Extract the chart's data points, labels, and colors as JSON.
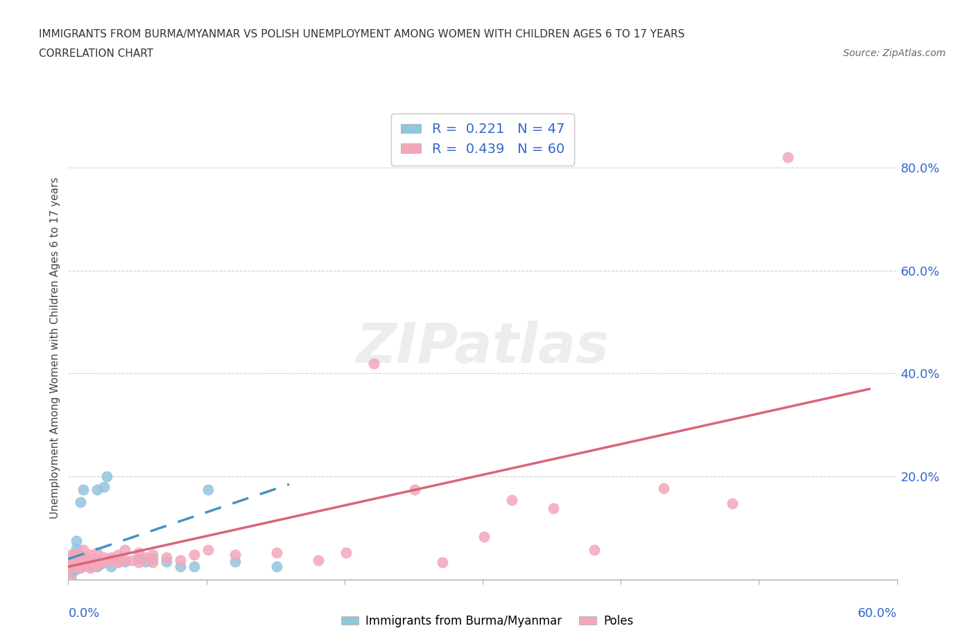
{
  "title_line1": "IMMIGRANTS FROM BURMA/MYANMAR VS POLISH UNEMPLOYMENT AMONG WOMEN WITH CHILDREN AGES 6 TO 17 YEARS",
  "title_line2": "CORRELATION CHART",
  "source_text": "Source: ZipAtlas.com",
  "ylabel": "Unemployment Among Women with Children Ages 6 to 17 years",
  "xlim": [
    0.0,
    0.6
  ],
  "ylim": [
    0.0,
    0.9
  ],
  "yticks": [
    0.0,
    0.2,
    0.4,
    0.6,
    0.8
  ],
  "ytick_labels": [
    "",
    "20.0%",
    "40.0%",
    "60.0%",
    "80.0%"
  ],
  "xticks": [
    0.0,
    0.1,
    0.2,
    0.3,
    0.4,
    0.5,
    0.6
  ],
  "xtick_labels": [
    "",
    "",
    "",
    "",
    "",
    "",
    ""
  ],
  "x_outside_left": "0.0%",
  "x_outside_right": "60.0%",
  "watermark": "ZIPatlas",
  "legend_R1": "R =  0.221   N = 47",
  "legend_R2": "R =  0.439   N = 60",
  "blue_color": "#92c5de",
  "pink_color": "#f4a7b9",
  "blue_line_color": "#4393c3",
  "pink_line_color": "#d9647a",
  "text_color": "#3366cc",
  "grid_color": "#d0d0d0",
  "blue_scatter": [
    [
      0.001,
      0.035
    ],
    [
      0.001,
      0.025
    ],
    [
      0.001,
      0.04
    ],
    [
      0.001,
      0.02
    ],
    [
      0.001,
      0.015
    ],
    [
      0.001,
      0.01
    ],
    [
      0.002,
      0.03
    ],
    [
      0.002,
      0.025
    ],
    [
      0.002,
      0.018
    ],
    [
      0.003,
      0.035
    ],
    [
      0.003,
      0.025
    ],
    [
      0.003,
      0.015
    ],
    [
      0.004,
      0.04
    ],
    [
      0.004,
      0.03
    ],
    [
      0.004,
      0.022
    ],
    [
      0.005,
      0.05
    ],
    [
      0.006,
      0.075
    ],
    [
      0.006,
      0.06
    ],
    [
      0.006,
      0.035
    ],
    [
      0.006,
      0.02
    ],
    [
      0.007,
      0.025
    ],
    [
      0.008,
      0.03
    ],
    [
      0.009,
      0.035
    ],
    [
      0.009,
      0.15
    ],
    [
      0.011,
      0.025
    ],
    [
      0.011,
      0.175
    ],
    [
      0.013,
      0.03
    ],
    [
      0.016,
      0.035
    ],
    [
      0.016,
      0.025
    ],
    [
      0.021,
      0.025
    ],
    [
      0.021,
      0.175
    ],
    [
      0.023,
      0.03
    ],
    [
      0.026,
      0.18
    ],
    [
      0.028,
      0.2
    ],
    [
      0.031,
      0.025
    ],
    [
      0.036,
      0.035
    ],
    [
      0.041,
      0.035
    ],
    [
      0.051,
      0.04
    ],
    [
      0.056,
      0.035
    ],
    [
      0.061,
      0.04
    ],
    [
      0.071,
      0.035
    ],
    [
      0.081,
      0.025
    ],
    [
      0.091,
      0.025
    ],
    [
      0.101,
      0.175
    ],
    [
      0.121,
      0.035
    ],
    [
      0.151,
      0.025
    ],
    [
      0.002,
      0.004
    ]
  ],
  "pink_scatter": [
    [
      0.001,
      0.03
    ],
    [
      0.001,
      0.038
    ],
    [
      0.001,
      0.023
    ],
    [
      0.002,
      0.048
    ],
    [
      0.002,
      0.033
    ],
    [
      0.003,
      0.038
    ],
    [
      0.003,
      0.033
    ],
    [
      0.004,
      0.038
    ],
    [
      0.004,
      0.033
    ],
    [
      0.006,
      0.048
    ],
    [
      0.006,
      0.033
    ],
    [
      0.006,
      0.023
    ],
    [
      0.007,
      0.038
    ],
    [
      0.008,
      0.038
    ],
    [
      0.009,
      0.048
    ],
    [
      0.009,
      0.033
    ],
    [
      0.009,
      0.023
    ],
    [
      0.011,
      0.058
    ],
    [
      0.011,
      0.038
    ],
    [
      0.011,
      0.028
    ],
    [
      0.013,
      0.043
    ],
    [
      0.016,
      0.048
    ],
    [
      0.016,
      0.033
    ],
    [
      0.016,
      0.023
    ],
    [
      0.019,
      0.038
    ],
    [
      0.021,
      0.053
    ],
    [
      0.021,
      0.033
    ],
    [
      0.021,
      0.028
    ],
    [
      0.026,
      0.043
    ],
    [
      0.026,
      0.033
    ],
    [
      0.031,
      0.043
    ],
    [
      0.031,
      0.038
    ],
    [
      0.036,
      0.048
    ],
    [
      0.036,
      0.033
    ],
    [
      0.041,
      0.058
    ],
    [
      0.041,
      0.038
    ],
    [
      0.046,
      0.038
    ],
    [
      0.051,
      0.053
    ],
    [
      0.051,
      0.033
    ],
    [
      0.056,
      0.043
    ],
    [
      0.061,
      0.048
    ],
    [
      0.061,
      0.033
    ],
    [
      0.071,
      0.043
    ],
    [
      0.081,
      0.038
    ],
    [
      0.091,
      0.048
    ],
    [
      0.101,
      0.058
    ],
    [
      0.121,
      0.048
    ],
    [
      0.151,
      0.053
    ],
    [
      0.181,
      0.038
    ],
    [
      0.201,
      0.053
    ],
    [
      0.221,
      0.42
    ],
    [
      0.251,
      0.175
    ],
    [
      0.271,
      0.033
    ],
    [
      0.301,
      0.083
    ],
    [
      0.321,
      0.155
    ],
    [
      0.351,
      0.138
    ],
    [
      0.381,
      0.058
    ],
    [
      0.431,
      0.178
    ],
    [
      0.481,
      0.148
    ],
    [
      0.521,
      0.82
    ],
    [
      0.001,
      0.002
    ]
  ],
  "blue_trendline_x": [
    0.0,
    0.16
  ],
  "blue_trendline_y": [
    0.04,
    0.185
  ],
  "pink_trendline_x": [
    0.0,
    0.58
  ],
  "pink_trendline_y": [
    0.025,
    0.37
  ]
}
